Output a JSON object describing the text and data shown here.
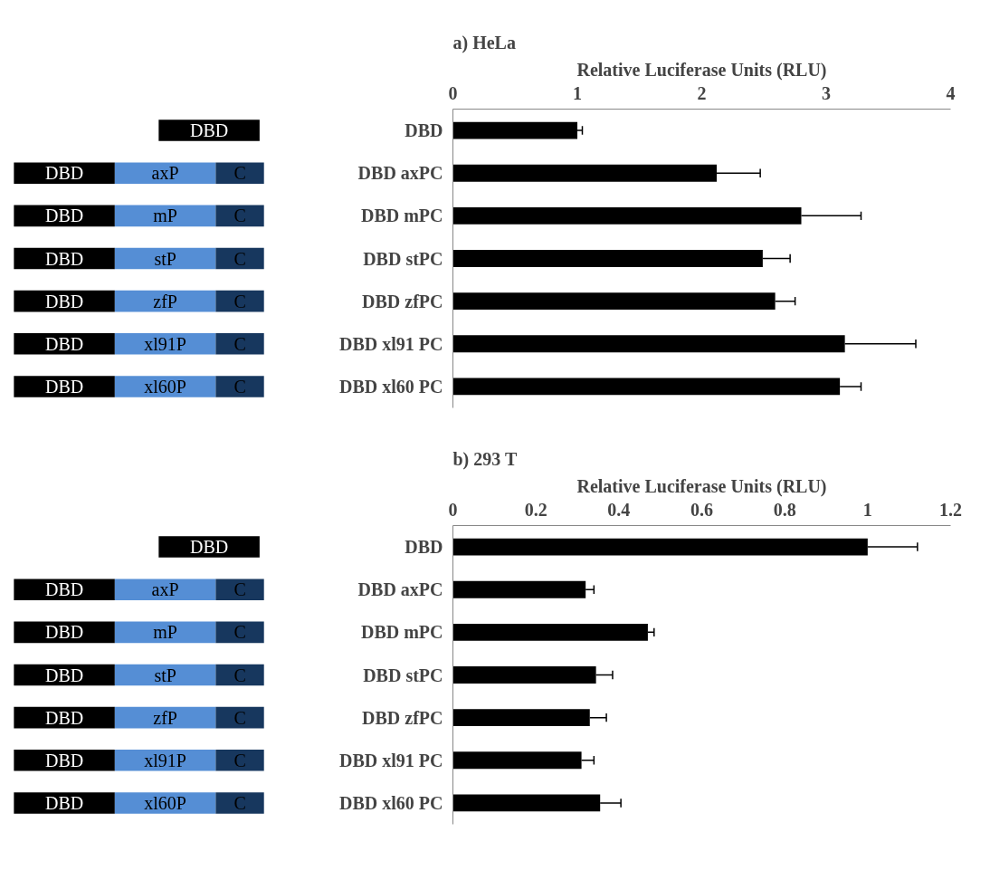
{
  "chart_data": [
    {
      "type": "bar",
      "orientation": "horizontal",
      "title": "a) HeLa",
      "xlabel": "Relative Luciferase Units (RLU)",
      "categories": [
        "DBD",
        "DBD axPC",
        "DBD mPC",
        "DBD stPC",
        "DBD zfPC",
        "DBD xl91 PC",
        "DBD xl60 PC"
      ],
      "values": [
        1.0,
        2.12,
        2.8,
        2.49,
        2.59,
        3.15,
        3.11
      ],
      "errors": [
        [
          1.0,
          1.04
        ],
        [
          2.12,
          2.47
        ],
        [
          2.8,
          3.28
        ],
        [
          2.49,
          2.71
        ],
        [
          2.59,
          2.75
        ],
        [
          3.15,
          3.72
        ],
        [
          3.11,
          3.28
        ]
      ],
      "color": "#000000",
      "xlim": [
        0,
        4
      ],
      "xticks": [
        0,
        1,
        2,
        3,
        4
      ],
      "grid": false,
      "annotations": [
        "DBD",
        "DBD",
        "axP",
        "C",
        "DBD",
        "mP",
        "C",
        "DBD",
        "stP",
        "C",
        "DBD",
        "zfP",
        "C",
        "DBD",
        "xl91P",
        "C",
        "DBD",
        "xl60P",
        "C"
      ]
    },
    {
      "type": "bar",
      "orientation": "horizontal",
      "title": "b) 293 T",
      "xlabel": "Relative Luciferase Units (RLU)",
      "categories": [
        "DBD",
        "DBD axPC",
        "DBD mPC",
        "DBD stPC",
        "DBD zfPC",
        "DBD xl91 PC",
        "DBD xl60 PC"
      ],
      "values": [
        1.0,
        0.32,
        0.47,
        0.345,
        0.33,
        0.31,
        0.355
      ],
      "errors": [
        [
          1.0,
          1.12
        ],
        [
          0.32,
          0.34
        ],
        [
          0.47,
          0.485
        ],
        [
          0.345,
          0.385
        ],
        [
          0.33,
          0.37
        ],
        [
          0.31,
          0.34
        ],
        [
          0.355,
          0.405
        ]
      ],
      "color": "#000000",
      "xlim": [
        0,
        1.2
      ],
      "xticks": [
        0,
        0.2,
        0.4,
        0.6,
        0.8,
        1,
        1.2
      ],
      "grid": false,
      "annotations": [
        "DBD",
        "DBD",
        "axP",
        "C",
        "DBD",
        "mP",
        "C",
        "DBD",
        "stP",
        "C",
        "DBD",
        "zfP",
        "C",
        "DBD",
        "xl91P",
        "C",
        "DBD",
        "xl60P",
        "C"
      ]
    }
  ]
}
